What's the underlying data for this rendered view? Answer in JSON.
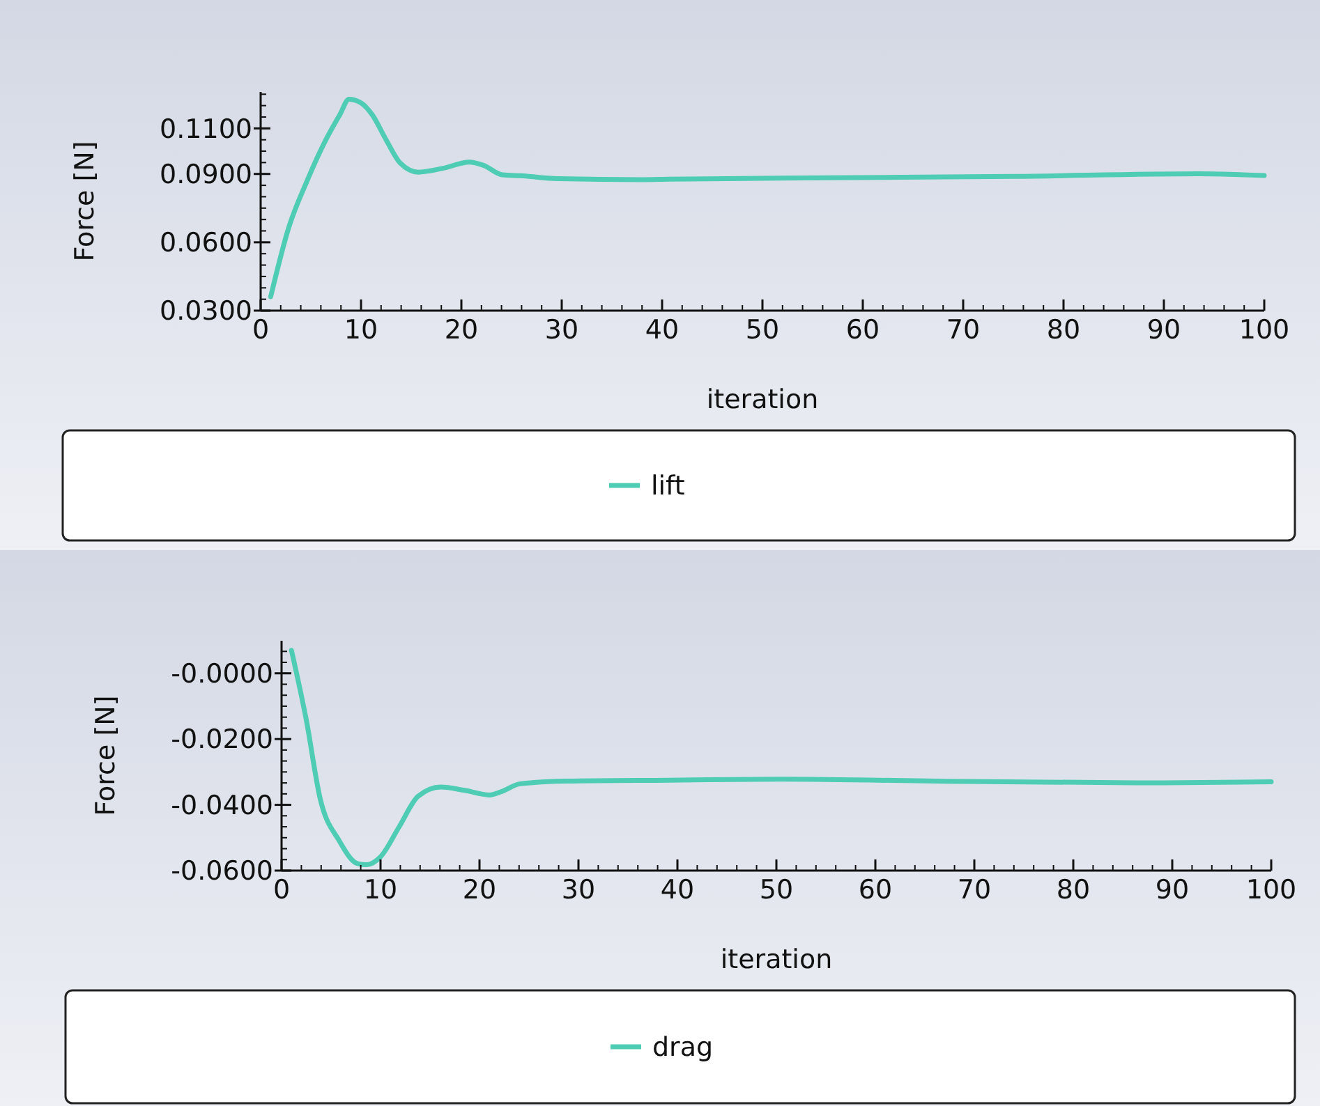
{
  "chart_data": [
    {
      "type": "line",
      "xlabel": "iteration",
      "ylabel": "Force [N]",
      "xlim": [
        0,
        100
      ],
      "xticks": [
        0,
        10,
        20,
        30,
        40,
        50,
        60,
        70,
        80,
        90,
        100
      ],
      "ylim": [
        0.03,
        0.126
      ],
      "yticks": [
        {
          "value": 0.03,
          "label": "0.0300"
        },
        {
          "value": 0.06,
          "label": "0.0600"
        },
        {
          "value": 0.09,
          "label": "0.0900"
        },
        {
          "value": 0.11,
          "label": "0.1100"
        }
      ],
      "legend": "bottom",
      "grid": false,
      "series": [
        {
          "name": "lift",
          "color": "#4ecdb4",
          "x": [
            1,
            2.8,
            4.6,
            6.5,
            7.9,
            8.8,
            10,
            11.1,
            12.5,
            13.9,
            15.7,
            18.1,
            20.8,
            22.2,
            24.1,
            25.9,
            29.6,
            38,
            40.7,
            56.5,
            75,
            93.5,
            100
          ],
          "values": [
            0.0361,
            0.0665,
            0.0867,
            0.105,
            0.1161,
            0.1228,
            0.1212,
            0.1161,
            0.105,
            0.0948,
            0.0908,
            0.0924,
            0.0952,
            0.0938,
            0.0896,
            0.0892,
            0.0879,
            0.0875,
            0.0877,
            0.0883,
            0.0889,
            0.0901,
            0.0893
          ]
        }
      ]
    },
    {
      "type": "line",
      "xlabel": "iteration",
      "ylabel": "Force [N]",
      "xlim": [
        0,
        100
      ],
      "xticks": [
        0,
        10,
        20,
        30,
        40,
        50,
        60,
        70,
        80,
        90,
        100
      ],
      "ylim": [
        -0.06,
        0.0099
      ],
      "yticks": [
        {
          "value": -0.06,
          "label": "-0.0600"
        },
        {
          "value": -0.04,
          "label": "-0.0400"
        },
        {
          "value": -0.02,
          "label": "-0.0200"
        },
        {
          "value": 0,
          "label": "-0.0000"
        }
      ],
      "legend": "bottom",
      "grid": false,
      "series": [
        {
          "name": "drag",
          "color": "#4ecdb4",
          "x": [
            1,
            2.5,
            3.9,
            5.8,
            7.7,
            8.6,
            10,
            11.9,
            13.8,
            16.1,
            18.5,
            21,
            22.2,
            24.1,
            28.8,
            39.1,
            50.4,
            69.2,
            87.9,
            100
          ],
          "values": [
            0.007,
            -0.0142,
            -0.0381,
            -0.0508,
            -0.0579,
            -0.0582,
            -0.0558,
            -0.0466,
            -0.0374,
            -0.0346,
            -0.0356,
            -0.037,
            -0.036,
            -0.0336,
            -0.0328,
            -0.0325,
            -0.0322,
            -0.0329,
            -0.0333,
            -0.033
          ]
        }
      ]
    }
  ]
}
